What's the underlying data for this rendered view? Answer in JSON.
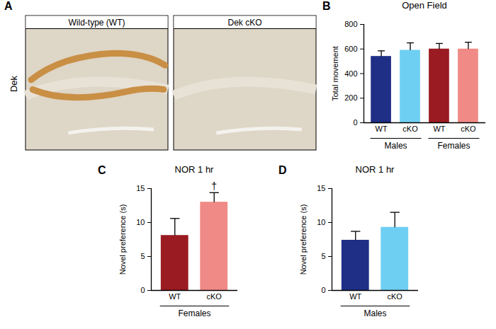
{
  "chart_data": [
    {
      "panel": "A",
      "type": "image",
      "row_label": "Dek",
      "titles": [
        "Wild-type (WT)",
        "Dek cKO"
      ]
    },
    {
      "panel": "B",
      "type": "bar",
      "title": "Open Field",
      "ylabel": "Total movement",
      "categories": [
        "WT",
        "cKO",
        "WT",
        "cKO"
      ],
      "groups": [
        "Males",
        "Males",
        "Females",
        "Females"
      ],
      "values": [
        540,
        590,
        600,
        600
      ],
      "errors": [
        45,
        60,
        45,
        55
      ],
      "colors": [
        "#1f2f86",
        "#6fcff3",
        "#9a1b22",
        "#f08a86"
      ],
      "ylim": [
        0,
        800
      ],
      "yticks": [
        0,
        200,
        400,
        600,
        800
      ]
    },
    {
      "panel": "C",
      "type": "bar",
      "title": "NOR 1 hr",
      "ylabel": "Novel preference (s)",
      "categories": [
        "WT",
        "cKO"
      ],
      "groups": [
        "Females",
        "Females"
      ],
      "values": [
        8.1,
        13.0
      ],
      "errors": [
        2.5,
        1.4
      ],
      "colors": [
        "#9a1b22",
        "#f08a86"
      ],
      "ylim": [
        0,
        15
      ],
      "yticks": [
        0,
        5,
        10,
        15
      ],
      "annotations": [
        {
          "text": "†",
          "index": 1
        }
      ]
    },
    {
      "panel": "D",
      "type": "bar",
      "title": "NOR 1 hr",
      "ylabel": "Novel preference (s)",
      "categories": [
        "WT",
        "cKO"
      ],
      "groups": [
        "Males",
        "Males"
      ],
      "values": [
        7.4,
        9.3
      ],
      "errors": [
        1.3,
        2.2
      ],
      "colors": [
        "#1f2f86",
        "#6fcff3"
      ],
      "ylim": [
        0,
        15
      ],
      "yticks": [
        0,
        5,
        10,
        15
      ]
    }
  ]
}
